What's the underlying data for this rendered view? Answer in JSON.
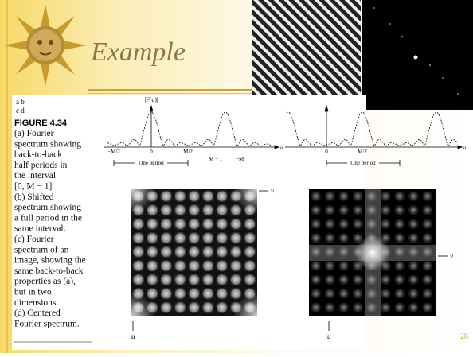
{
  "slide": {
    "title": "Example",
    "page_number": "28"
  },
  "figure": {
    "panel_labels": [
      "a b",
      "c d"
    ],
    "label": "FIGURE 4.34",
    "caption": [
      "(a) Fourier",
      "spectrum showing",
      "back-to-back",
      "half periods in",
      "the interval",
      "[0, M − 1].",
      "(b) Shifted",
      "spectrum showing",
      "a full period in the",
      "same interval.",
      "(c) Fourier",
      "spectrum of an",
      "image, showing the",
      "same back-to-back",
      "properties as (a),",
      "but in two",
      "dimensions.",
      "(d) Centered",
      "Fourier spectrum."
    ]
  },
  "plot_a": {
    "y_label": "|F(u)|",
    "ticks": [
      "−M/2",
      "0",
      "M/2"
    ],
    "annotations": [
      "M − 1",
      "−M"
    ],
    "x_label": "u",
    "period_label": "One period"
  },
  "plot_b": {
    "ticks": [
      "0",
      "M/2"
    ],
    "x_label": "u",
    "period_label": "One period"
  },
  "image_c": {
    "axis_v": "v",
    "axis_u": "u"
  },
  "image_d": {
    "axis_v": "v",
    "axis_u": "u"
  }
}
